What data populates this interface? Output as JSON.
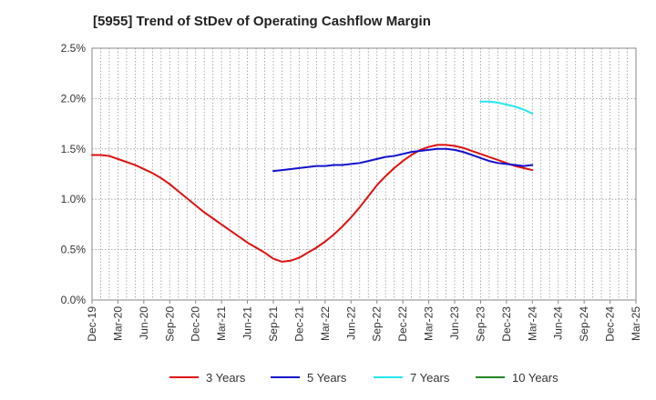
{
  "chart_data": {
    "type": "line",
    "title": "[5955]  Trend of StDev of Operating Cashflow Margin",
    "xlabel": "",
    "ylabel": "",
    "y_ticks": [
      "0.0%",
      "0.5%",
      "1.0%",
      "1.5%",
      "2.0%",
      "2.5%"
    ],
    "ylim": [
      0,
      2.5
    ],
    "grid": true,
    "legend_position": "bottom",
    "x_ticks": [
      "Dec-19",
      "Mar-20",
      "Jun-20",
      "Sep-20",
      "Dec-20",
      "Mar-21",
      "Jun-21",
      "Sep-21",
      "Dec-21",
      "Mar-22",
      "Jun-22",
      "Sep-22",
      "Dec-22",
      "Mar-23",
      "Jun-23",
      "Sep-23",
      "Dec-23",
      "Mar-24",
      "Jun-24",
      "Sep-24",
      "Dec-24",
      "Mar-25"
    ],
    "series": [
      {
        "name": "3 Years",
        "color": "#dd1111",
        "points": [
          [
            "Dec-19",
            1.44
          ],
          [
            "Jan-20",
            1.44
          ],
          [
            "Feb-20",
            1.43
          ],
          [
            "Mar-20",
            1.4
          ],
          [
            "Apr-20",
            1.37
          ],
          [
            "May-20",
            1.34
          ],
          [
            "Jun-20",
            1.3
          ],
          [
            "Jul-20",
            1.26
          ],
          [
            "Aug-20",
            1.21
          ],
          [
            "Sep-20",
            1.15
          ],
          [
            "Oct-20",
            1.08
          ],
          [
            "Nov-20",
            1.01
          ],
          [
            "Dec-20",
            0.94
          ],
          [
            "Jan-21",
            0.87
          ],
          [
            "Feb-21",
            0.81
          ],
          [
            "Mar-21",
            0.75
          ],
          [
            "Apr-21",
            0.69
          ],
          [
            "May-21",
            0.63
          ],
          [
            "Jun-21",
            0.57
          ],
          [
            "Jul-21",
            0.52
          ],
          [
            "Aug-21",
            0.47
          ],
          [
            "Sep-21",
            0.41
          ],
          [
            "Oct-21",
            0.38
          ],
          [
            "Nov-21",
            0.39
          ],
          [
            "Dec-21",
            0.42
          ],
          [
            "Jan-22",
            0.47
          ],
          [
            "Feb-22",
            0.52
          ],
          [
            "Mar-22",
            0.58
          ],
          [
            "Apr-22",
            0.65
          ],
          [
            "May-22",
            0.73
          ],
          [
            "Jun-22",
            0.82
          ],
          [
            "Jul-22",
            0.92
          ],
          [
            "Aug-22",
            1.03
          ],
          [
            "Sep-22",
            1.14
          ],
          [
            "Oct-22",
            1.23
          ],
          [
            "Nov-22",
            1.31
          ],
          [
            "Dec-22",
            1.38
          ],
          [
            "Jan-23",
            1.44
          ],
          [
            "Feb-23",
            1.49
          ],
          [
            "Mar-23",
            1.52
          ],
          [
            "Apr-23",
            1.54
          ],
          [
            "May-23",
            1.54
          ],
          [
            "Jun-23",
            1.53
          ],
          [
            "Jul-23",
            1.51
          ],
          [
            "Aug-23",
            1.48
          ],
          [
            "Sep-23",
            1.45
          ],
          [
            "Oct-23",
            1.42
          ],
          [
            "Nov-23",
            1.39
          ],
          [
            "Dec-23",
            1.36
          ],
          [
            "Jan-24",
            1.33
          ],
          [
            "Feb-24",
            1.31
          ],
          [
            "Mar-24",
            1.29
          ]
        ]
      },
      {
        "name": "5 Years",
        "color": "#1111cc",
        "points": [
          [
            "Sep-21",
            1.28
          ],
          [
            "Oct-21",
            1.29
          ],
          [
            "Nov-21",
            1.3
          ],
          [
            "Dec-21",
            1.31
          ],
          [
            "Jan-22",
            1.32
          ],
          [
            "Feb-22",
            1.33
          ],
          [
            "Mar-22",
            1.33
          ],
          [
            "Apr-22",
            1.34
          ],
          [
            "May-22",
            1.34
          ],
          [
            "Jun-22",
            1.35
          ],
          [
            "Jul-22",
            1.36
          ],
          [
            "Aug-22",
            1.38
          ],
          [
            "Sep-22",
            1.4
          ],
          [
            "Oct-22",
            1.42
          ],
          [
            "Nov-22",
            1.43
          ],
          [
            "Dec-22",
            1.45
          ],
          [
            "Jan-23",
            1.47
          ],
          [
            "Feb-23",
            1.48
          ],
          [
            "Mar-23",
            1.49
          ],
          [
            "Apr-23",
            1.5
          ],
          [
            "May-23",
            1.5
          ],
          [
            "Jun-23",
            1.49
          ],
          [
            "Jul-23",
            1.47
          ],
          [
            "Aug-23",
            1.44
          ],
          [
            "Sep-23",
            1.41
          ],
          [
            "Oct-23",
            1.38
          ],
          [
            "Nov-23",
            1.36
          ],
          [
            "Dec-23",
            1.35
          ],
          [
            "Jan-24",
            1.34
          ],
          [
            "Feb-24",
            1.33
          ],
          [
            "Mar-24",
            1.34
          ]
        ]
      },
      {
        "name": "7 Years",
        "color": "#22e6ee",
        "points": [
          [
            "Sep-23",
            1.97
          ],
          [
            "Oct-23",
            1.97
          ],
          [
            "Nov-23",
            1.96
          ],
          [
            "Dec-23",
            1.94
          ],
          [
            "Jan-24",
            1.92
          ],
          [
            "Feb-24",
            1.89
          ],
          [
            "Mar-24",
            1.85
          ]
        ]
      },
      {
        "name": "10 Years",
        "color": "#228822",
        "points": []
      }
    ]
  }
}
